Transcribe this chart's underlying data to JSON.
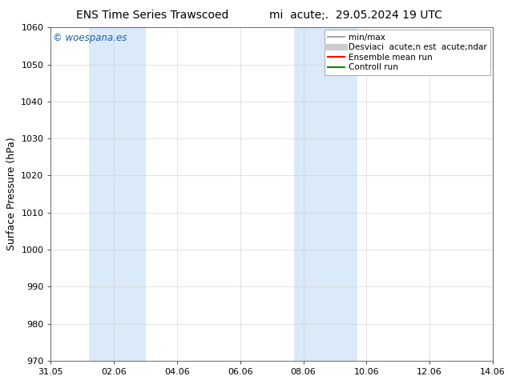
{
  "title_left": "ENS Time Series Trawscoed",
  "title_right": "mi  acute;.  29.05.2024 19 UTC",
  "ylabel": "Surface Pressure (hPa)",
  "ylim": [
    970,
    1060
  ],
  "yticks": [
    970,
    980,
    990,
    1000,
    1010,
    1020,
    1030,
    1040,
    1050,
    1060
  ],
  "xlim_dates": [
    "31.05",
    "02.06",
    "04.06",
    "06.06",
    "08.06",
    "10.06",
    "12.06",
    "14.06"
  ],
  "xtick_positions": [
    0,
    2,
    4,
    6,
    8,
    10,
    12,
    14
  ],
  "shaded_regions": [
    {
      "xstart": 1.2,
      "xend": 3.0
    },
    {
      "xstart": 7.7,
      "xend": 9.7
    }
  ],
  "shaded_color": "#daeaf8",
  "background_color": "#ffffff",
  "plot_bg_color": "#ffffff",
  "watermark_text": "© woespana.es",
  "watermark_color": "#1a5eb5",
  "legend_labels": [
    "min/max",
    "Desviaci  acute;n est  acute;ndar",
    "Ensemble mean run",
    "Controll run"
  ],
  "legend_colors": [
    "#aaaaaa",
    "#cccccc",
    "#ff0000",
    "#008800"
  ],
  "legend_lws": [
    1.5,
    6,
    1.5,
    1.5
  ],
  "grid_color": "#cccccc",
  "tick_fontsize": 8,
  "ylabel_fontsize": 9,
  "title_fontsize": 10,
  "legend_fontsize": 7.5,
  "watermark_fontsize": 8.5
}
